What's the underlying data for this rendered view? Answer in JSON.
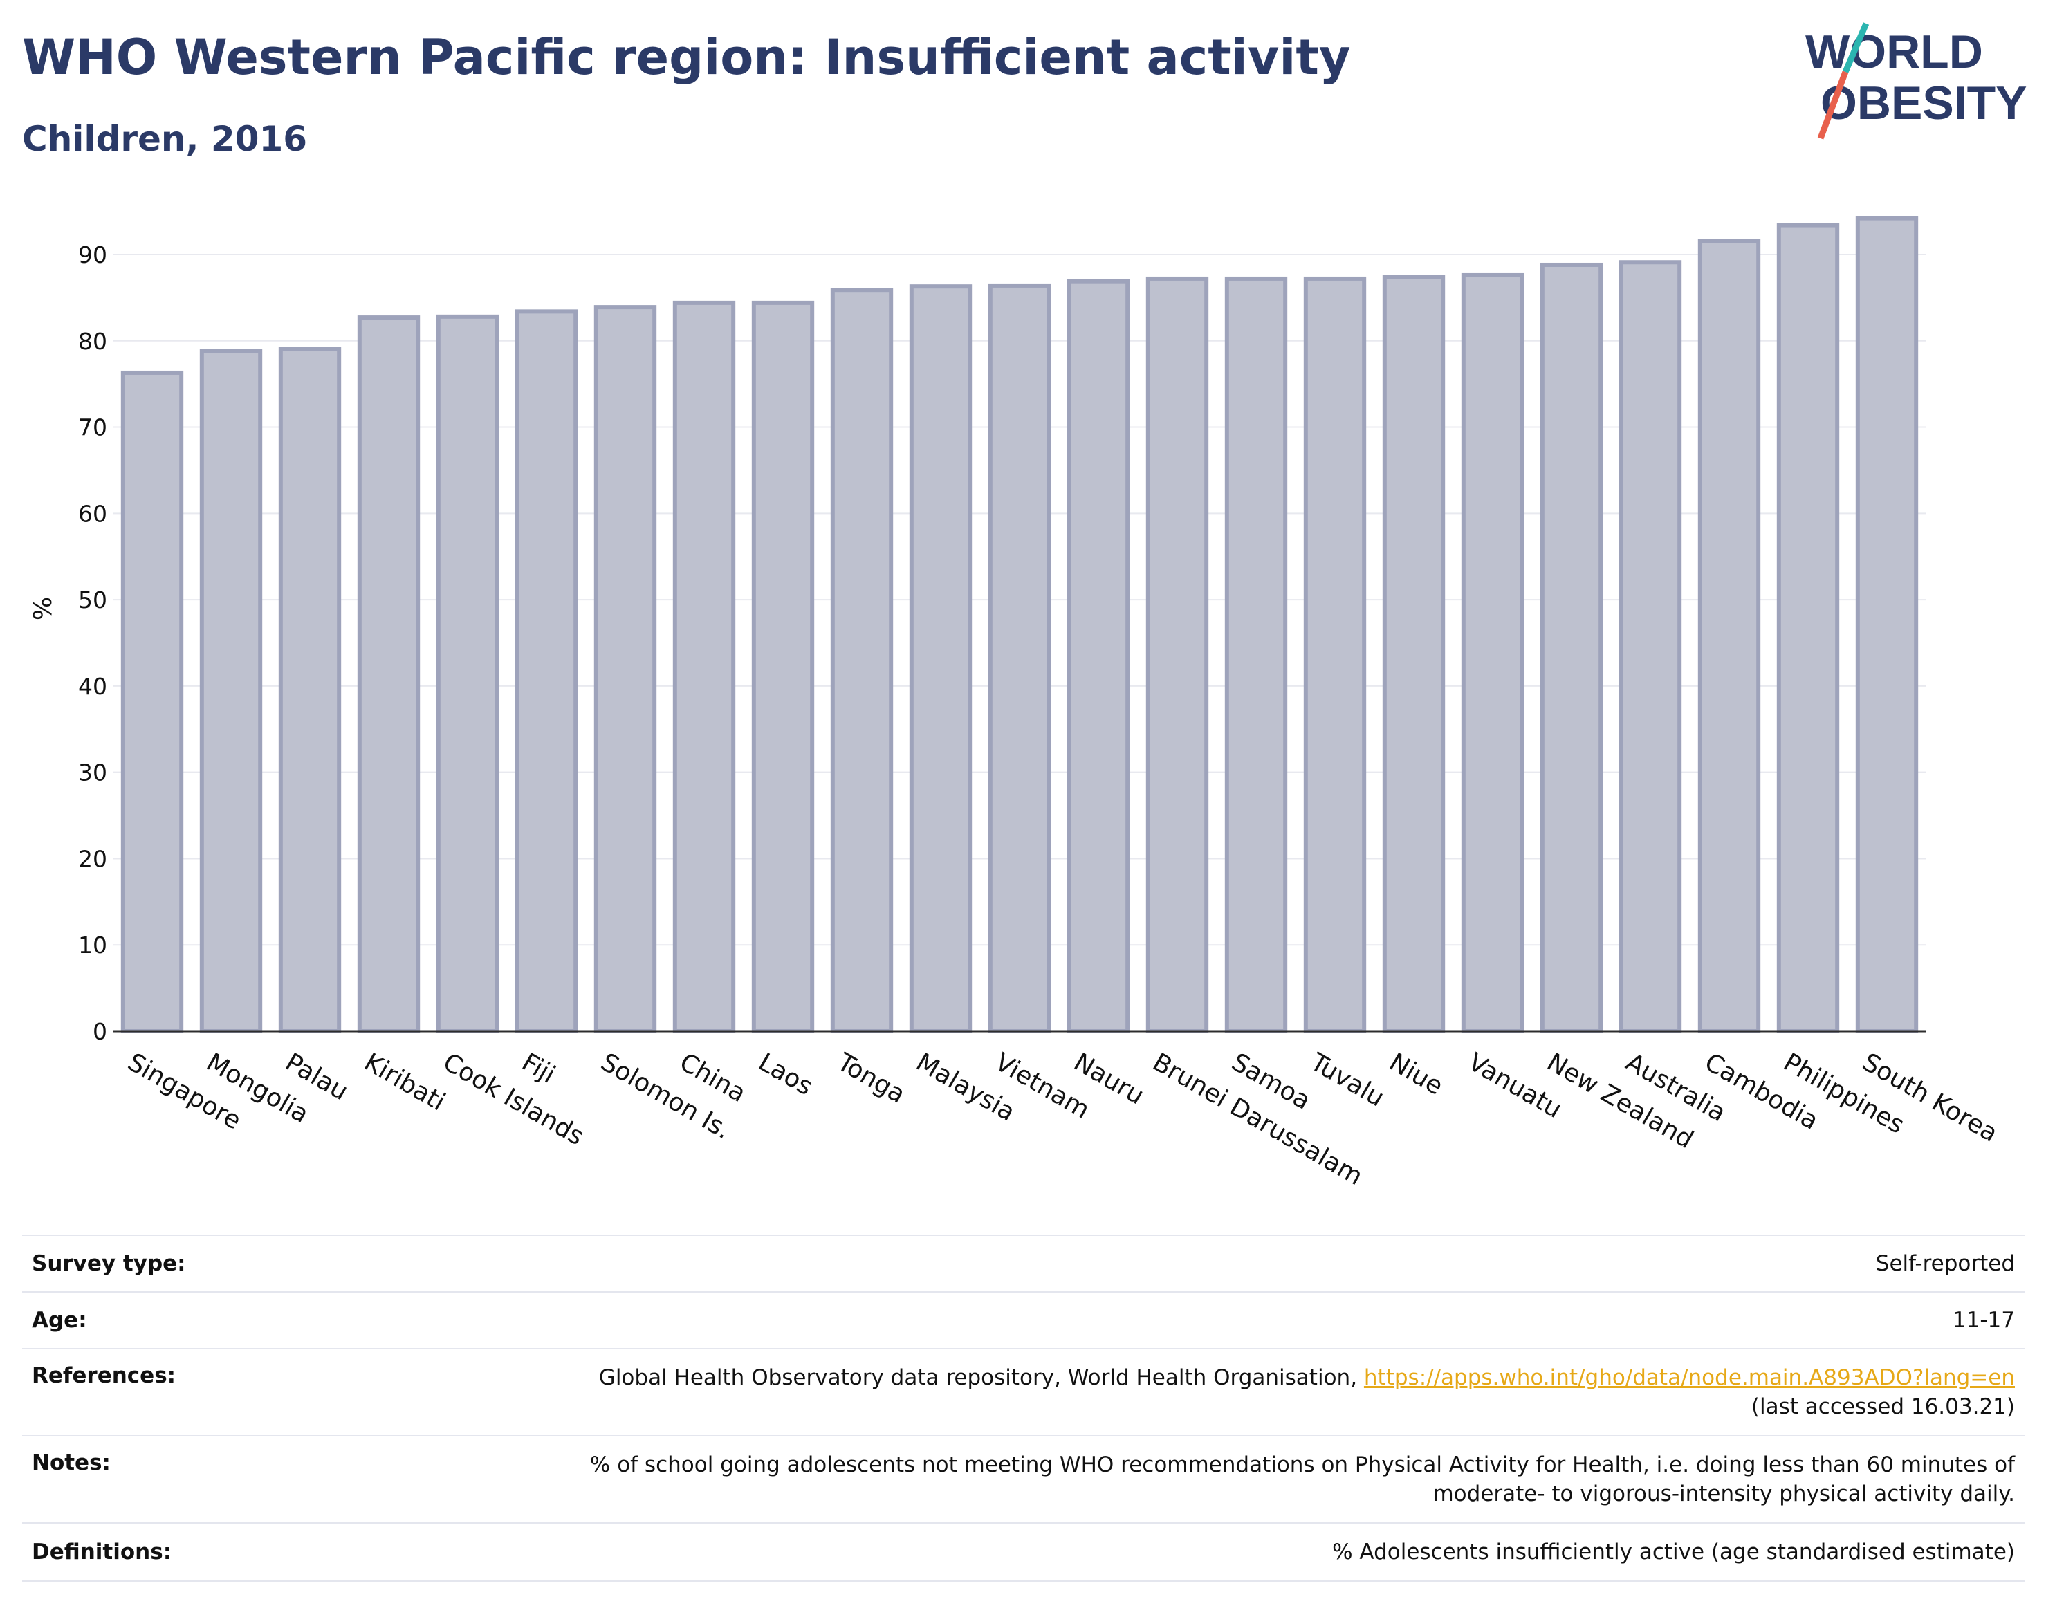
{
  "header": {
    "title": "WHO Western Pacific region: Insufficient activity",
    "subtitle": "Children, 2016"
  },
  "logo": {
    "line1": "WORLD",
    "line2": "OBESITY"
  },
  "chart_data": {
    "type": "bar",
    "title": "WHO Western Pacific region: Insufficient activity",
    "subtitle": "Children, 2016",
    "xlabel": "",
    "ylabel": "%",
    "ylim": [
      0,
      95
    ],
    "yticks": [
      0,
      10,
      20,
      30,
      40,
      50,
      60,
      70,
      80,
      90
    ],
    "grid": true,
    "legend": "none",
    "categories": [
      "Singapore",
      "Mongolia",
      "Palau",
      "Kiribati",
      "Cook Islands",
      "Fiji",
      "Solomon Is.",
      "China",
      "Laos",
      "Tonga",
      "Malaysia",
      "Vietnam",
      "Nauru",
      "Brunei Darussalam",
      "Samoa",
      "Tuvalu",
      "Niue",
      "Vanuatu",
      "New Zealand",
      "Australia",
      "Cambodia",
      "Philippines",
      "South Korea"
    ],
    "values": [
      76.3,
      78.8,
      79.1,
      82.7,
      82.8,
      83.4,
      83.9,
      84.4,
      84.4,
      85.9,
      86.3,
      86.4,
      86.9,
      87.2,
      87.2,
      87.2,
      87.4,
      87.6,
      88.8,
      89.1,
      91.6,
      93.4,
      94.2
    ],
    "colors": {
      "bar_fill": "#bec1cf",
      "bar_stroke": "#9ea3bb",
      "grid": "#e8e9ef",
      "axis": "#2d2d2d"
    }
  },
  "info": {
    "survey_type": {
      "label": "Survey type:",
      "value": "Self-reported"
    },
    "age": {
      "label": "Age:",
      "value": "11-17"
    },
    "references": {
      "label": "References:",
      "text": "Global Health Observatory data repository, World Health Organisation,",
      "link": "https://apps.who.int/gho/data/node.main.A893ADO?lang=en",
      "accessed": "(last accessed 16.03.21)"
    },
    "notes": {
      "label": "Notes:",
      "line1": "% of school going adolescents not meeting WHO recommendations on Physical Activity for Health, i.e. doing less than 60 minutes of",
      "line2": "moderate- to vigorous-intensity physical activity daily."
    },
    "definitions": {
      "label": "Definitions:",
      "value": "% Adolescents insufficiently active (age standardised estimate)"
    }
  },
  "colors": {
    "title": "#2b3a67",
    "link": "#e6a817",
    "logo_teal": "#2bb5b0",
    "logo_red": "#e8604c"
  }
}
